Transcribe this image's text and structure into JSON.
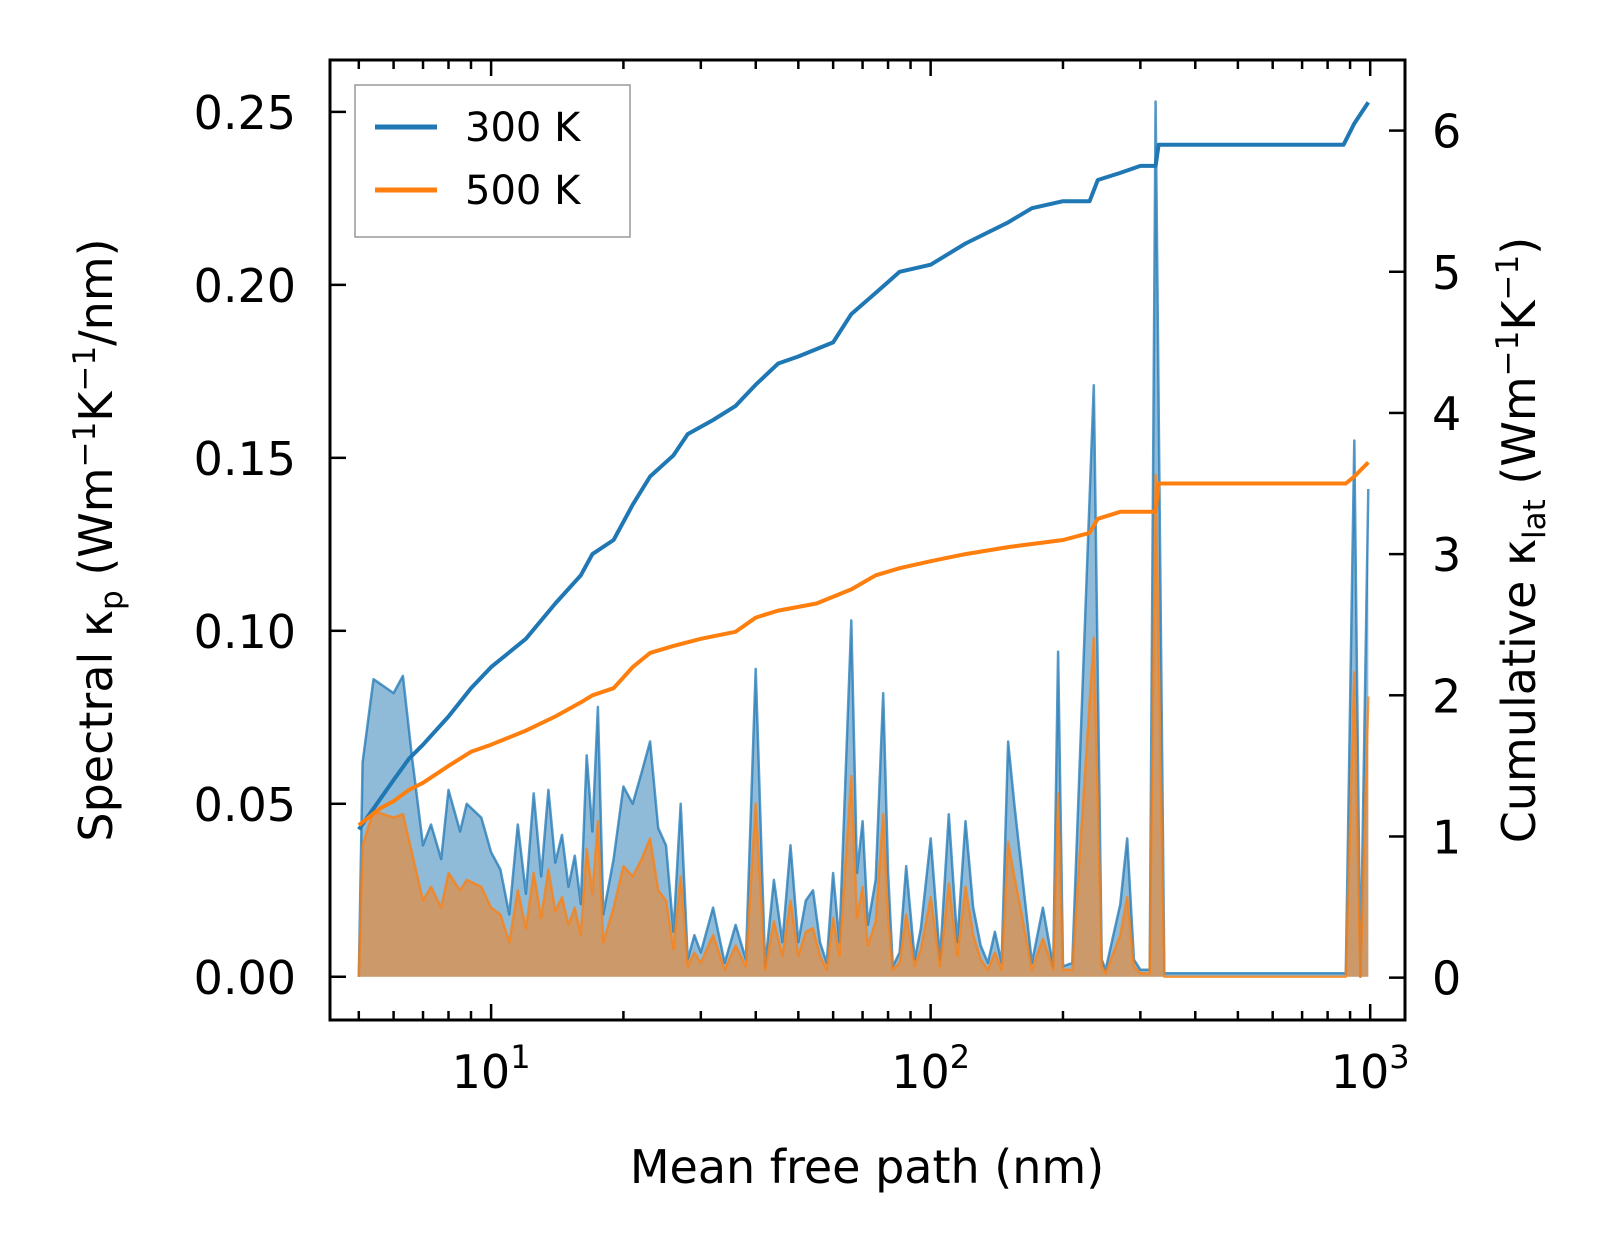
{
  "chart_data": {
    "type": "line",
    "xscale": "log",
    "x_ticks": [
      10,
      100,
      1000
    ],
    "x_tick_labels": [
      {
        "base": "10",
        "exp": "1"
      },
      {
        "base": "10",
        "exp": "2"
      },
      {
        "base": "10",
        "exp": "3"
      }
    ],
    "xlim": [
      4.3,
      1200
    ],
    "ylim_left": [
      -0.0125,
      0.265
    ],
    "ylim_right": [
      -0.3,
      6.5
    ],
    "y_ticks_left": [
      "0.00",
      "0.05",
      "0.10",
      "0.15",
      "0.20",
      "0.25"
    ],
    "y_ticks_right": [
      "0",
      "1",
      "2",
      "3",
      "4",
      "5",
      "6"
    ],
    "xlabel": "Mean free path (nm)",
    "ylabel_left": {
      "prefix": "Spectral κ",
      "sub": "p",
      "unit_open": " (Wm",
      "sup1": "−1",
      "mid": "K",
      "sup2": "−1",
      "unit_close": "/nm)"
    },
    "ylabel_right": {
      "prefix": "Cumulative κ",
      "sub": "lat",
      "unit_open": " (Wm",
      "sup1": "−1",
      "mid": "K",
      "sup2": "−1",
      "unit_close": ")"
    },
    "legend": {
      "position": "top-left",
      "entries": [
        "300 K",
        "500 K"
      ]
    },
    "series": [
      {
        "name": "300 K",
        "color": "#1f77b4",
        "cumulative": [
          [
            5,
            1.05
          ],
          [
            6,
            1.4
          ],
          [
            6.5,
            1.55
          ],
          [
            7,
            1.65
          ],
          [
            8,
            1.85
          ],
          [
            9,
            2.05
          ],
          [
            10,
            2.2
          ],
          [
            12,
            2.4
          ],
          [
            14,
            2.65
          ],
          [
            16,
            2.85
          ],
          [
            17,
            3.0
          ],
          [
            19,
            3.1
          ],
          [
            21,
            3.35
          ],
          [
            23,
            3.55
          ],
          [
            26,
            3.7
          ],
          [
            28,
            3.85
          ],
          [
            32,
            3.95
          ],
          [
            36,
            4.05
          ],
          [
            40,
            4.2
          ],
          [
            45,
            4.35
          ],
          [
            50,
            4.4
          ],
          [
            60,
            4.5
          ],
          [
            66,
            4.7
          ],
          [
            75,
            4.85
          ],
          [
            85,
            5.0
          ],
          [
            100,
            5.05
          ],
          [
            120,
            5.2
          ],
          [
            150,
            5.35
          ],
          [
            170,
            5.45
          ],
          [
            200,
            5.5
          ],
          [
            230,
            5.5
          ],
          [
            240,
            5.65
          ],
          [
            270,
            5.7
          ],
          [
            300,
            5.75
          ],
          [
            325,
            5.75
          ],
          [
            330,
            5.9
          ],
          [
            870,
            5.9
          ],
          [
            920,
            6.05
          ],
          [
            990,
            6.2
          ]
        ],
        "spectral_peaks": [
          [
            5,
            0.0
          ],
          [
            5.1,
            0.062
          ],
          [
            5.4,
            0.086
          ],
          [
            6,
            0.082
          ],
          [
            6.3,
            0.087
          ],
          [
            6.6,
            0.064
          ],
          [
            7,
            0.038
          ],
          [
            7.3,
            0.044
          ],
          [
            7.7,
            0.034
          ],
          [
            8,
            0.054
          ],
          [
            8.5,
            0.042
          ],
          [
            8.8,
            0.05
          ],
          [
            9.5,
            0.046
          ],
          [
            10,
            0.036
          ],
          [
            10.5,
            0.031
          ],
          [
            11,
            0.018
          ],
          [
            11.5,
            0.044
          ],
          [
            12,
            0.024
          ],
          [
            12.5,
            0.053
          ],
          [
            13,
            0.029
          ],
          [
            13.5,
            0.054
          ],
          [
            14,
            0.033
          ],
          [
            14.5,
            0.041
          ],
          [
            15,
            0.026
          ],
          [
            15.5,
            0.035
          ],
          [
            16,
            0.021
          ],
          [
            16.5,
            0.064
          ],
          [
            17,
            0.042
          ],
          [
            17.5,
            0.078
          ],
          [
            18,
            0.018
          ],
          [
            19,
            0.034
          ],
          [
            20,
            0.055
          ],
          [
            21,
            0.05
          ],
          [
            22,
            0.059
          ],
          [
            23,
            0.068
          ],
          [
            24,
            0.043
          ],
          [
            25,
            0.038
          ],
          [
            26,
            0.013
          ],
          [
            27,
            0.05
          ],
          [
            28,
            0.005
          ],
          [
            29,
            0.012
          ],
          [
            30,
            0.007
          ],
          [
            32,
            0.02
          ],
          [
            34,
            0.004
          ],
          [
            36,
            0.015
          ],
          [
            38,
            0.005
          ],
          [
            40,
            0.089
          ],
          [
            42,
            0.003
          ],
          [
            44,
            0.028
          ],
          [
            46,
            0.01
          ],
          [
            48,
            0.038
          ],
          [
            50,
            0.01
          ],
          [
            52,
            0.022
          ],
          [
            54,
            0.025
          ],
          [
            56,
            0.01
          ],
          [
            58,
            0.004
          ],
          [
            60,
            0.03
          ],
          [
            62,
            0.01
          ],
          [
            66,
            0.103
          ],
          [
            68,
            0.03
          ],
          [
            70,
            0.045
          ],
          [
            72,
            0.015
          ],
          [
            75,
            0.028
          ],
          [
            78,
            0.082
          ],
          [
            80,
            0.03
          ],
          [
            82,
            0.003
          ],
          [
            85,
            0.007
          ],
          [
            88,
            0.032
          ],
          [
            92,
            0.005
          ],
          [
            95,
            0.014
          ],
          [
            100,
            0.04
          ],
          [
            105,
            0.005
          ],
          [
            110,
            0.047
          ],
          [
            115,
            0.01
          ],
          [
            120,
            0.045
          ],
          [
            125,
            0.02
          ],
          [
            130,
            0.009
          ],
          [
            135,
            0.004
          ],
          [
            140,
            0.013
          ],
          [
            145,
            0.004
          ],
          [
            150,
            0.068
          ],
          [
            155,
            0.05
          ],
          [
            160,
            0.034
          ],
          [
            170,
            0.004
          ],
          [
            180,
            0.02
          ],
          [
            190,
            0.003
          ],
          [
            195,
            0.094
          ],
          [
            200,
            0.003
          ],
          [
            210,
            0.004
          ],
          [
            235,
            0.171
          ],
          [
            245,
            0.005
          ],
          [
            250,
            0.002
          ],
          [
            270,
            0.021
          ],
          [
            280,
            0.04
          ],
          [
            290,
            0.005
          ],
          [
            300,
            0.002
          ],
          [
            315,
            0.002
          ],
          [
            325,
            0.253
          ],
          [
            340,
            0.001
          ],
          [
            880,
            0.001
          ],
          [
            920,
            0.155
          ],
          [
            950,
            0.0
          ],
          [
            990,
            0.141
          ]
        ]
      },
      {
        "name": "500 K",
        "color": "#ff7f0e",
        "cumulative": [
          [
            5,
            1.08
          ],
          [
            5.6,
            1.2
          ],
          [
            6,
            1.25
          ],
          [
            6.5,
            1.33
          ],
          [
            7,
            1.38
          ],
          [
            8,
            1.5
          ],
          [
            9,
            1.6
          ],
          [
            10,
            1.65
          ],
          [
            12,
            1.75
          ],
          [
            14,
            1.85
          ],
          [
            16,
            1.95
          ],
          [
            17,
            2.0
          ],
          [
            19,
            2.05
          ],
          [
            21,
            2.2
          ],
          [
            23,
            2.3
          ],
          [
            26,
            2.35
          ],
          [
            30,
            2.4
          ],
          [
            36,
            2.45
          ],
          [
            40,
            2.55
          ],
          [
            45,
            2.6
          ],
          [
            55,
            2.65
          ],
          [
            66,
            2.75
          ],
          [
            75,
            2.85
          ],
          [
            85,
            2.9
          ],
          [
            100,
            2.95
          ],
          [
            120,
            3.0
          ],
          [
            150,
            3.05
          ],
          [
            200,
            3.1
          ],
          [
            230,
            3.15
          ],
          [
            240,
            3.25
          ],
          [
            270,
            3.3
          ],
          [
            325,
            3.3
          ],
          [
            330,
            3.5
          ],
          [
            880,
            3.5
          ],
          [
            920,
            3.55
          ],
          [
            990,
            3.65
          ]
        ],
        "spectral_peaks": [
          [
            5,
            0.0
          ],
          [
            5.1,
            0.038
          ],
          [
            5.4,
            0.048
          ],
          [
            6,
            0.046
          ],
          [
            6.3,
            0.047
          ],
          [
            6.6,
            0.036
          ],
          [
            7,
            0.022
          ],
          [
            7.3,
            0.026
          ],
          [
            7.7,
            0.02
          ],
          [
            8,
            0.03
          ],
          [
            8.5,
            0.025
          ],
          [
            8.8,
            0.028
          ],
          [
            9.5,
            0.026
          ],
          [
            10,
            0.02
          ],
          [
            10.5,
            0.018
          ],
          [
            11,
            0.01
          ],
          [
            11.5,
            0.025
          ],
          [
            12,
            0.014
          ],
          [
            12.5,
            0.03
          ],
          [
            13,
            0.017
          ],
          [
            13.5,
            0.031
          ],
          [
            14,
            0.019
          ],
          [
            14.5,
            0.023
          ],
          [
            15,
            0.015
          ],
          [
            15.5,
            0.02
          ],
          [
            16,
            0.012
          ],
          [
            16.5,
            0.037
          ],
          [
            17,
            0.024
          ],
          [
            17.5,
            0.045
          ],
          [
            18,
            0.01
          ],
          [
            19,
            0.02
          ],
          [
            20,
            0.032
          ],
          [
            21,
            0.029
          ],
          [
            22,
            0.034
          ],
          [
            23,
            0.04
          ],
          [
            24,
            0.025
          ],
          [
            25,
            0.022
          ],
          [
            26,
            0.008
          ],
          [
            27,
            0.029
          ],
          [
            28,
            0.003
          ],
          [
            29,
            0.007
          ],
          [
            30,
            0.004
          ],
          [
            32,
            0.012
          ],
          [
            34,
            0.002
          ],
          [
            36,
            0.009
          ],
          [
            38,
            0.003
          ],
          [
            40,
            0.05
          ],
          [
            42,
            0.002
          ],
          [
            44,
            0.016
          ],
          [
            46,
            0.006
          ],
          [
            48,
            0.022
          ],
          [
            50,
            0.006
          ],
          [
            52,
            0.013
          ],
          [
            54,
            0.014
          ],
          [
            56,
            0.006
          ],
          [
            58,
            0.002
          ],
          [
            60,
            0.017
          ],
          [
            62,
            0.006
          ],
          [
            66,
            0.058
          ],
          [
            68,
            0.017
          ],
          [
            70,
            0.026
          ],
          [
            72,
            0.009
          ],
          [
            75,
            0.016
          ],
          [
            78,
            0.047
          ],
          [
            80,
            0.017
          ],
          [
            82,
            0.002
          ],
          [
            85,
            0.004
          ],
          [
            88,
            0.018
          ],
          [
            92,
            0.003
          ],
          [
            95,
            0.008
          ],
          [
            100,
            0.023
          ],
          [
            105,
            0.003
          ],
          [
            110,
            0.027
          ],
          [
            115,
            0.006
          ],
          [
            120,
            0.026
          ],
          [
            125,
            0.012
          ],
          [
            130,
            0.005
          ],
          [
            135,
            0.002
          ],
          [
            140,
            0.007
          ],
          [
            145,
            0.002
          ],
          [
            150,
            0.039
          ],
          [
            155,
            0.029
          ],
          [
            160,
            0.02
          ],
          [
            170,
            0.002
          ],
          [
            180,
            0.011
          ],
          [
            190,
            0.002
          ],
          [
            195,
            0.053
          ],
          [
            200,
            0.002
          ],
          [
            210,
            0.002
          ],
          [
            235,
            0.098
          ],
          [
            245,
            0.003
          ],
          [
            250,
            0.001
          ],
          [
            270,
            0.012
          ],
          [
            280,
            0.023
          ],
          [
            290,
            0.003
          ],
          [
            300,
            0.001
          ],
          [
            315,
            0.001
          ],
          [
            325,
            0.145
          ],
          [
            340,
            0.0
          ],
          [
            880,
            0.0
          ],
          [
            920,
            0.088
          ],
          [
            950,
            0.0
          ],
          [
            990,
            0.081
          ]
        ]
      }
    ]
  }
}
